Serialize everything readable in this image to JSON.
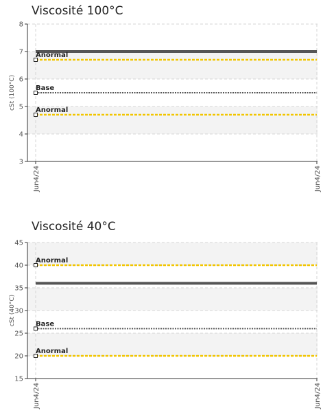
{
  "chart_data": [
    {
      "type": "line",
      "title": "Viscosité 100°C",
      "ylabel": "cSt (100°C)",
      "ylim": [
        3,
        8
      ],
      "yticks": [
        3,
        4,
        5,
        6,
        7,
        8
      ],
      "categories": [
        "Jun4/24",
        "Jun4/24"
      ],
      "bands": [
        [
          6,
          7
        ],
        [
          4,
          5
        ]
      ],
      "grid": true,
      "series": [
        {
          "values": [
            7.0,
            7.0
          ],
          "color": "#555555",
          "style": "solid",
          "width": 4
        },
        {
          "name": "Anormal",
          "values": [
            6.7,
            6.7
          ],
          "color": "#f2c500",
          "style": "dashed",
          "width": 2.5
        },
        {
          "name": "Base",
          "values": [
            5.5,
            5.5
          ],
          "color": "#555555",
          "style": "dotted",
          "width": 2
        },
        {
          "name": "Anormal",
          "values": [
            4.7,
            4.7
          ],
          "color": "#f2c500",
          "style": "dashed",
          "width": 2.5
        }
      ]
    },
    {
      "type": "line",
      "title": "Viscosité 40°C",
      "ylabel": "cSt (40°C)",
      "ylim": [
        15,
        45
      ],
      "yticks": [
        15,
        20,
        25,
        30,
        35,
        40,
        45
      ],
      "categories": [
        "Jun4/24",
        "Jun4/24"
      ],
      "bands": [
        [
          40,
          45
        ],
        [
          30,
          35
        ],
        [
          20,
          25
        ]
      ],
      "grid": true,
      "series": [
        {
          "name": "Anormal",
          "values": [
            40,
            40
          ],
          "color": "#f2c500",
          "style": "dashed",
          "width": 2.5
        },
        {
          "values": [
            36,
            36
          ],
          "color": "#555555",
          "style": "solid",
          "width": 4
        },
        {
          "name": "Base",
          "values": [
            26,
            26
          ],
          "color": "#555555",
          "style": "dotted",
          "width": 2
        },
        {
          "name": "Anormal",
          "values": [
            20,
            20
          ],
          "color": "#f2c500",
          "style": "dashed",
          "width": 2.5
        }
      ]
    }
  ]
}
